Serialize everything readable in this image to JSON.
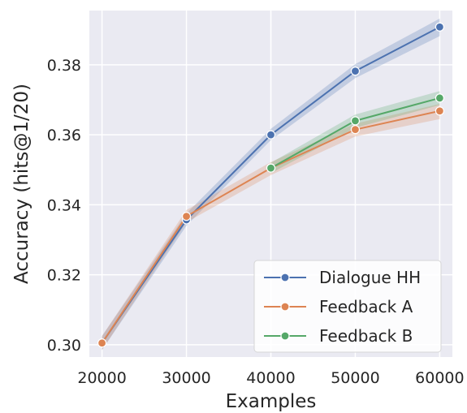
{
  "chart_data": {
    "type": "line",
    "x": [
      20000,
      30000,
      40000,
      50000,
      60000
    ],
    "xlabel": "Examples",
    "ylabel": "Accuracy (hits@1/20)",
    "xlim": [
      18500,
      61500
    ],
    "ylim": [
      0.2965,
      0.3955
    ],
    "xticks": [
      20000,
      30000,
      40000,
      50000,
      60000
    ],
    "yticks": [
      0.3,
      0.32,
      0.34,
      0.36,
      0.38
    ],
    "ytick_labels": [
      "0.30",
      "0.32",
      "0.34",
      "0.36",
      "0.38"
    ],
    "xtick_labels": [
      "20000",
      "30000",
      "40000",
      "50000",
      "60000"
    ],
    "grid": true,
    "legend_position": "bottom-right",
    "series": [
      {
        "name": "Dialogue HH",
        "color": "#4c72b0",
        "values": [
          0.3005,
          0.3357,
          0.36,
          0.3782,
          0.3908
        ],
        "ci_low": [
          0.2985,
          0.334,
          0.3585,
          0.3762,
          0.3882
        ],
        "ci_high": [
          0.3025,
          0.3375,
          0.3617,
          0.3802,
          0.3932
        ]
      },
      {
        "name": "Feedback A",
        "color": "#dd8452",
        "values": [
          0.3005,
          0.3367,
          0.3505,
          0.3615,
          0.3668
        ],
        "ci_low": [
          0.2985,
          0.335,
          0.3485,
          0.3595,
          0.3645
        ],
        "ci_high": [
          0.3025,
          0.3385,
          0.3522,
          0.3632,
          0.3688
        ]
      },
      {
        "name": "Feedback B",
        "color": "#55a868",
        "values": [
          null,
          null,
          0.3505,
          0.364,
          0.3705
        ],
        "ci_low": [
          null,
          null,
          0.349,
          0.362,
          0.3685
        ],
        "ci_high": [
          null,
          null,
          0.352,
          0.3658,
          0.3725
        ]
      }
    ]
  }
}
